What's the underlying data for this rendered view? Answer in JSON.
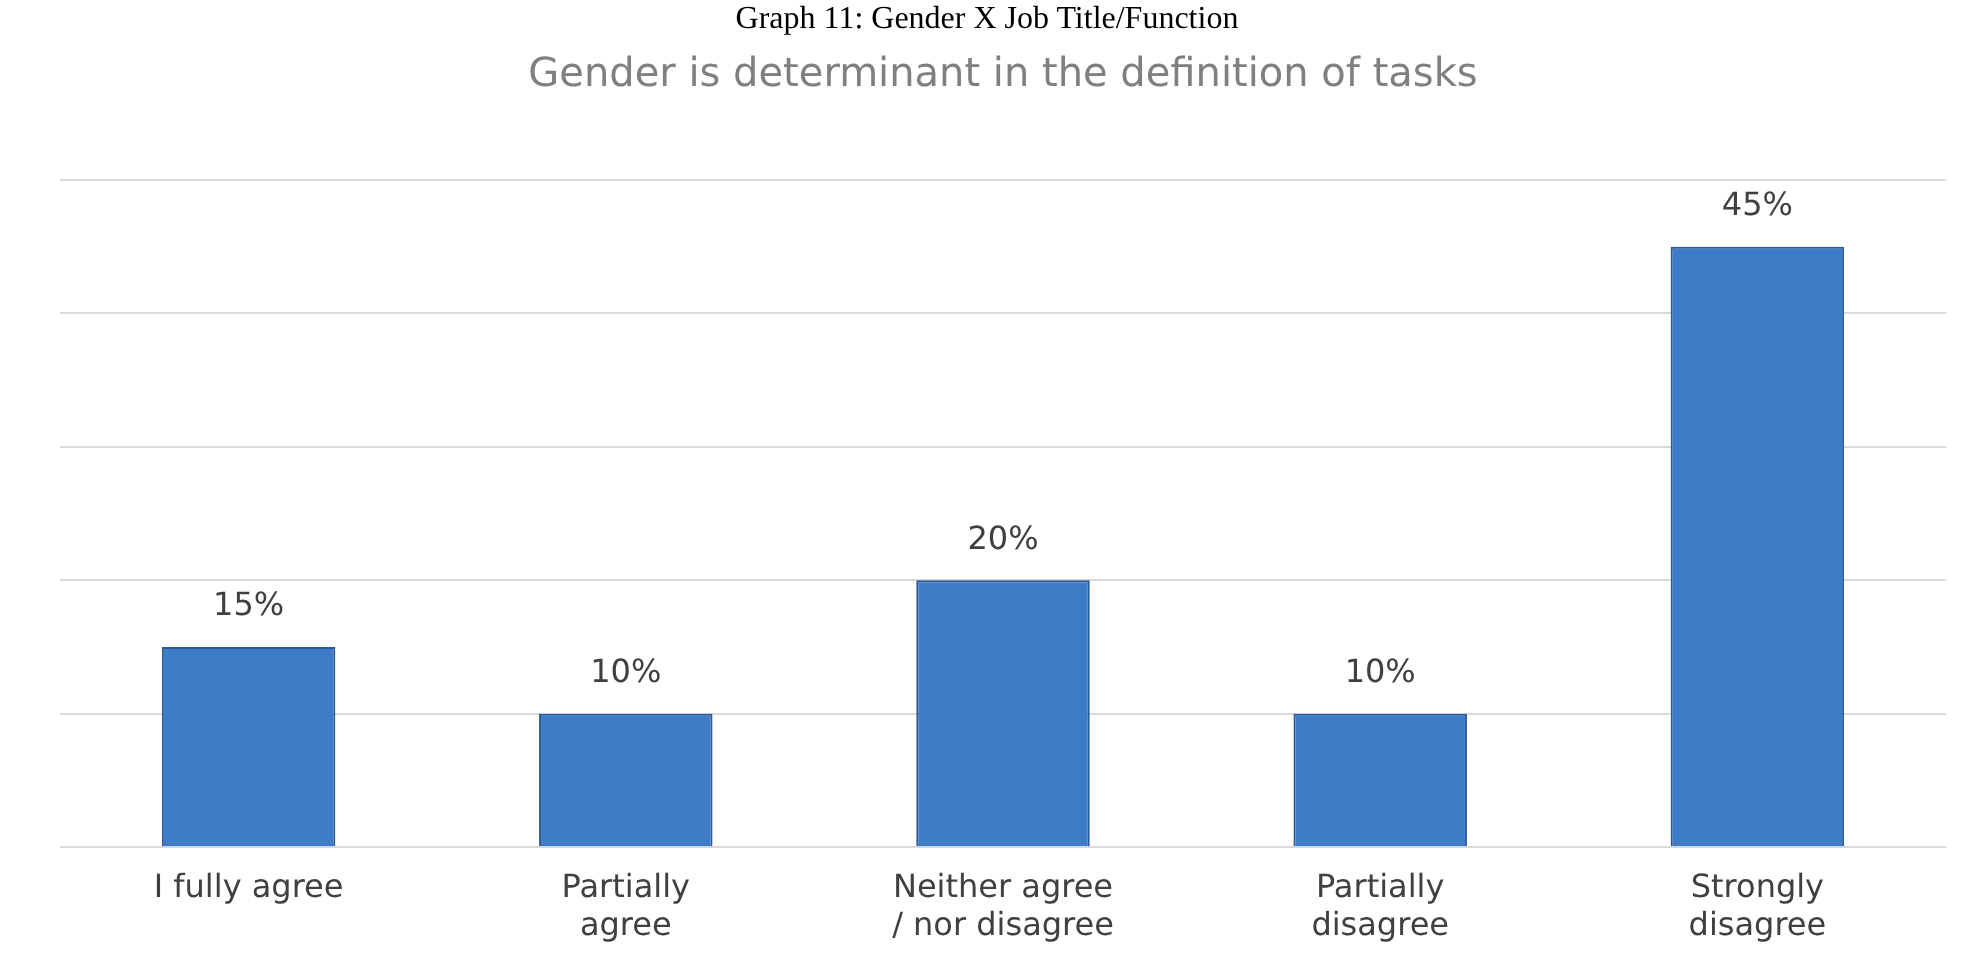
{
  "chart_data": {
    "type": "bar",
    "title": "Gender is determinant in the definition of tasks",
    "annotations": [
      "Graph 11: Gender X Job Title/Function"
    ],
    "categories": [
      "I fully agree",
      "Partially agree",
      "Neither agree / nor disagree",
      "Partially disagree",
      "Strongly disagree"
    ],
    "values": [
      15,
      10,
      20,
      10,
      45
    ],
    "color": "#3f7cc8",
    "ylim": [
      0,
      50
    ],
    "yticks": [
      {
        "value": 0,
        "label": null
      },
      {
        "value": 10,
        "label": null
      },
      {
        "value": 20,
        "label": null
      },
      {
        "value": 30,
        "label": null
      },
      {
        "value": 40,
        "label": null
      },
      {
        "value": 50,
        "label": null
      }
    ],
    "value_labels": [
      "15%",
      "10%",
      "20%",
      "10%",
      "45%"
    ],
    "grid": "y",
    "tick_labels": "x",
    "legend": false
  }
}
